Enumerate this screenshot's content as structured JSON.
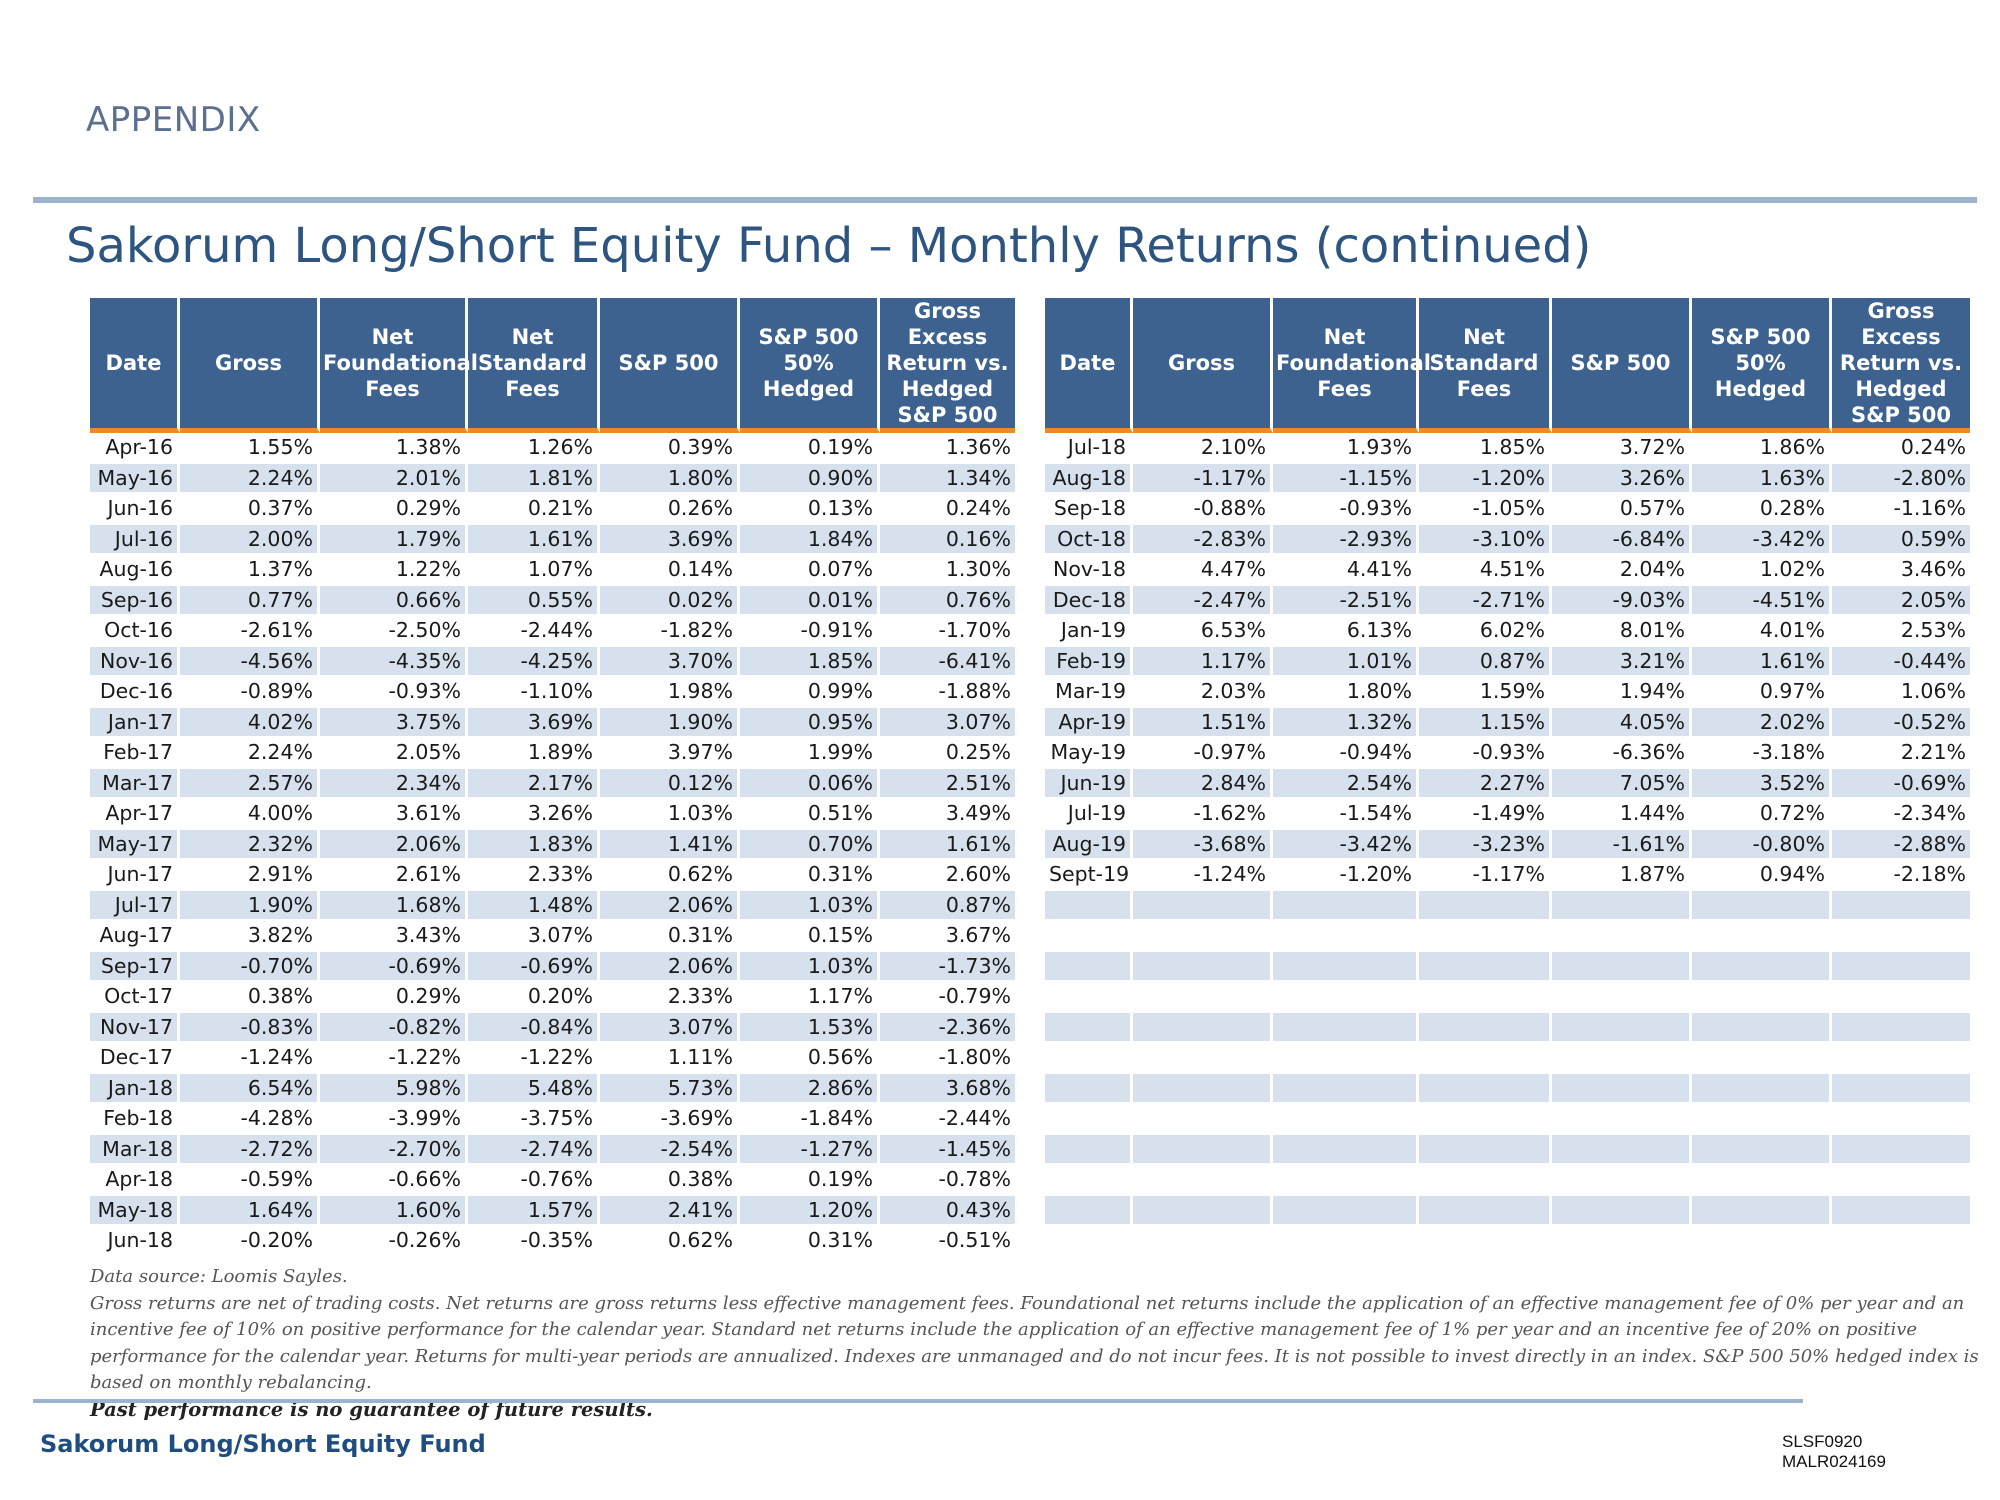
{
  "header": {
    "section": "APPENDIX",
    "title": "Sakorum Long/Short Equity Fund – Monthly Returns (continued)"
  },
  "left_table": {
    "columns": [
      "Date",
      "Gross",
      "Net Foundational Fees",
      "Net Standard Fees",
      "S&P 500",
      "S&P 500 50% Hedged",
      "Gross Excess Return vs. Hedged S&P 500"
    ],
    "rows": [
      [
        "Apr-16",
        "1.55%",
        "1.38%",
        "1.26%",
        "0.39%",
        "0.19%",
        "1.36%"
      ],
      [
        "May-16",
        "2.24%",
        "2.01%",
        "1.81%",
        "1.80%",
        "0.90%",
        "1.34%"
      ],
      [
        "Jun-16",
        "0.37%",
        "0.29%",
        "0.21%",
        "0.26%",
        "0.13%",
        "0.24%"
      ],
      [
        "Jul-16",
        "2.00%",
        "1.79%",
        "1.61%",
        "3.69%",
        "1.84%",
        "0.16%"
      ],
      [
        "Aug-16",
        "1.37%",
        "1.22%",
        "1.07%",
        "0.14%",
        "0.07%",
        "1.30%"
      ],
      [
        "Sep-16",
        "0.77%",
        "0.66%",
        "0.55%",
        "0.02%",
        "0.01%",
        "0.76%"
      ],
      [
        "Oct-16",
        "-2.61%",
        "-2.50%",
        "-2.44%",
        "-1.82%",
        "-0.91%",
        "-1.70%"
      ],
      [
        "Nov-16",
        "-4.56%",
        "-4.35%",
        "-4.25%",
        "3.70%",
        "1.85%",
        "-6.41%"
      ],
      [
        "Dec-16",
        "-0.89%",
        "-0.93%",
        "-1.10%",
        "1.98%",
        "0.99%",
        "-1.88%"
      ],
      [
        "Jan-17",
        "4.02%",
        "3.75%",
        "3.69%",
        "1.90%",
        "0.95%",
        "3.07%"
      ],
      [
        "Feb-17",
        "2.24%",
        "2.05%",
        "1.89%",
        "3.97%",
        "1.99%",
        "0.25%"
      ],
      [
        "Mar-17",
        "2.57%",
        "2.34%",
        "2.17%",
        "0.12%",
        "0.06%",
        "2.51%"
      ],
      [
        "Apr-17",
        "4.00%",
        "3.61%",
        "3.26%",
        "1.03%",
        "0.51%",
        "3.49%"
      ],
      [
        "May-17",
        "2.32%",
        "2.06%",
        "1.83%",
        "1.41%",
        "0.70%",
        "1.61%"
      ],
      [
        "Jun-17",
        "2.91%",
        "2.61%",
        "2.33%",
        "0.62%",
        "0.31%",
        "2.60%"
      ],
      [
        "Jul-17",
        "1.90%",
        "1.68%",
        "1.48%",
        "2.06%",
        "1.03%",
        "0.87%"
      ],
      [
        "Aug-17",
        "3.82%",
        "3.43%",
        "3.07%",
        "0.31%",
        "0.15%",
        "3.67%"
      ],
      [
        "Sep-17",
        "-0.70%",
        "-0.69%",
        "-0.69%",
        "2.06%",
        "1.03%",
        "-1.73%"
      ],
      [
        "Oct-17",
        "0.38%",
        "0.29%",
        "0.20%",
        "2.33%",
        "1.17%",
        "-0.79%"
      ],
      [
        "Nov-17",
        "-0.83%",
        "-0.82%",
        "-0.84%",
        "3.07%",
        "1.53%",
        "-2.36%"
      ],
      [
        "Dec-17",
        "-1.24%",
        "-1.22%",
        "-1.22%",
        "1.11%",
        "0.56%",
        "-1.80%"
      ],
      [
        "Jan-18",
        "6.54%",
        "5.98%",
        "5.48%",
        "5.73%",
        "2.86%",
        "3.68%"
      ],
      [
        "Feb-18",
        "-4.28%",
        "-3.99%",
        "-3.75%",
        "-3.69%",
        "-1.84%",
        "-2.44%"
      ],
      [
        "Mar-18",
        "-2.72%",
        "-2.70%",
        "-2.74%",
        "-2.54%",
        "-1.27%",
        "-1.45%"
      ],
      [
        "Apr-18",
        "-0.59%",
        "-0.66%",
        "-0.76%",
        "0.38%",
        "0.19%",
        "-0.78%"
      ],
      [
        "May-18",
        "1.64%",
        "1.60%",
        "1.57%",
        "2.41%",
        "1.20%",
        "0.43%"
      ],
      [
        "Jun-18",
        "-0.20%",
        "-0.26%",
        "-0.35%",
        "0.62%",
        "0.31%",
        "-0.51%"
      ]
    ]
  },
  "right_table": {
    "columns": [
      "Date",
      "Gross",
      "Net Foundational Fees",
      "Net Standard Fees",
      "S&P 500",
      "S&P 500 50% Hedged",
      "Gross Excess Return vs. Hedged S&P 500"
    ],
    "rows": [
      [
        "Jul-18",
        "2.10%",
        "1.93%",
        "1.85%",
        "3.72%",
        "1.86%",
        "0.24%"
      ],
      [
        "Aug-18",
        "-1.17%",
        "-1.15%",
        "-1.20%",
        "3.26%",
        "1.63%",
        "-2.80%"
      ],
      [
        "Sep-18",
        "-0.88%",
        "-0.93%",
        "-1.05%",
        "0.57%",
        "0.28%",
        "-1.16%"
      ],
      [
        "Oct-18",
        "-2.83%",
        "-2.93%",
        "-3.10%",
        "-6.84%",
        "-3.42%",
        "0.59%"
      ],
      [
        "Nov-18",
        "4.47%",
        "4.41%",
        "4.51%",
        "2.04%",
        "1.02%",
        "3.46%"
      ],
      [
        "Dec-18",
        "-2.47%",
        "-2.51%",
        "-2.71%",
        "-9.03%",
        "-4.51%",
        "2.05%"
      ],
      [
        "Jan-19",
        "6.53%",
        "6.13%",
        "6.02%",
        "8.01%",
        "4.01%",
        "2.53%"
      ],
      [
        "Feb-19",
        "1.17%",
        "1.01%",
        "0.87%",
        "3.21%",
        "1.61%",
        "-0.44%"
      ],
      [
        "Mar-19",
        "2.03%",
        "1.80%",
        "1.59%",
        "1.94%",
        "0.97%",
        "1.06%"
      ],
      [
        "Apr-19",
        "1.51%",
        "1.32%",
        "1.15%",
        "4.05%",
        "2.02%",
        "-0.52%"
      ],
      [
        "May-19",
        "-0.97%",
        "-0.94%",
        "-0.93%",
        "-6.36%",
        "-3.18%",
        "2.21%"
      ],
      [
        "Jun-19",
        "2.84%",
        "2.54%",
        "2.27%",
        "7.05%",
        "3.52%",
        "-0.69%"
      ],
      [
        "Jul-19",
        "-1.62%",
        "-1.54%",
        "-1.49%",
        "1.44%",
        "0.72%",
        "-2.34%"
      ],
      [
        "Aug-19",
        "-3.68%",
        "-3.42%",
        "-3.23%",
        "-1.61%",
        "-0.80%",
        "-2.88%"
      ],
      [
        "Sept-19",
        "-1.24%",
        "-1.20%",
        "-1.17%",
        "1.87%",
        "0.94%",
        "-2.18%"
      ],
      [
        "",
        "",
        "",
        "",
        "",
        "",
        ""
      ],
      [
        "",
        "",
        "",
        "",
        "",
        "",
        ""
      ],
      [
        "",
        "",
        "",
        "",
        "",
        "",
        ""
      ],
      [
        "",
        "",
        "",
        "",
        "",
        "",
        ""
      ],
      [
        "",
        "",
        "",
        "",
        "",
        "",
        ""
      ],
      [
        "",
        "",
        "",
        "",
        "",
        "",
        ""
      ],
      [
        "",
        "",
        "",
        "",
        "",
        "",
        ""
      ],
      [
        "",
        "",
        "",
        "",
        "",
        "",
        ""
      ],
      [
        "",
        "",
        "",
        "",
        "",
        "",
        ""
      ],
      [
        "",
        "",
        "",
        "",
        "",
        "",
        ""
      ],
      [
        "",
        "",
        "",
        "",
        "",
        "",
        ""
      ],
      [
        "",
        "",
        "",
        "",
        "",
        "",
        ""
      ]
    ]
  },
  "notes": {
    "source": "Data source: Loomis Sayles.",
    "body": "Gross returns are net of trading costs. Net returns are gross returns less effective management fees. Foundational net returns include the application of an effective management fee of 0% per year and an incentive fee of 10% on positive performance for the calendar year. Standard net returns include the application of an effective management fee of 1% per year and an incentive fee of 20% on positive performance for the calendar year. Returns for multi-year periods are annualized. Indexes are unmanaged and do not incur fees. It is not possible to invest directly in an index. S&P 500 50% hedged index is based on monthly rebalancing.",
    "disclaimer": "Past performance is no guarantee of future results."
  },
  "footer": {
    "fund_name": "Sakorum Long/Short Equity Fund",
    "code_1": "SLSF0920",
    "code_2": "MALR024169"
  }
}
